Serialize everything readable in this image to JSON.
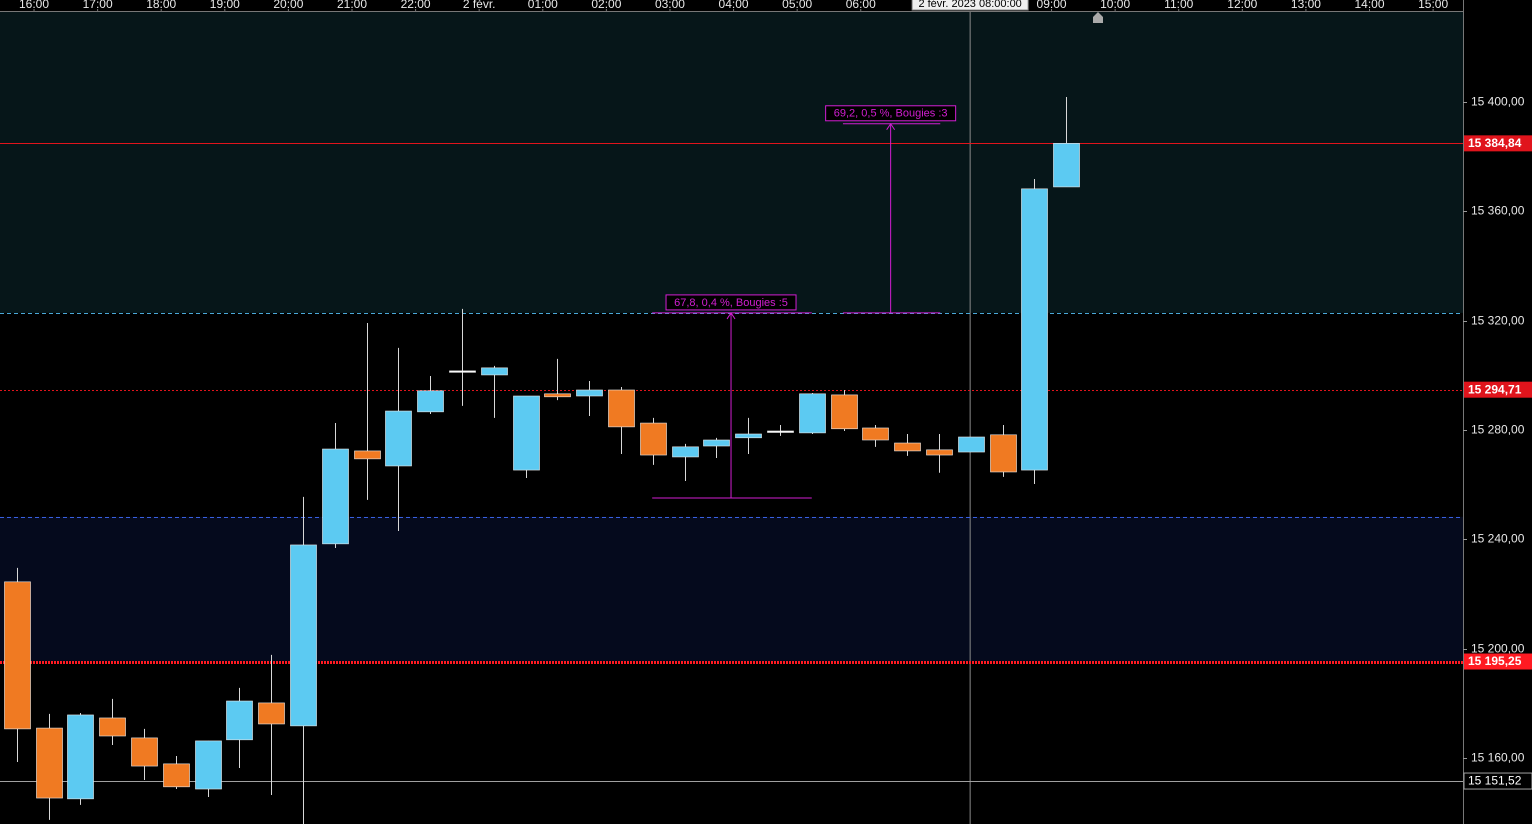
{
  "chart_data": {
    "type": "candlestick",
    "x": [
      -0.27,
      0.23,
      0.73,
      1.23,
      1.73,
      2.23,
      2.73,
      3.23,
      3.73,
      4.23,
      4.73,
      5.23,
      5.73,
      6.23,
      6.73,
      7.23,
      7.73,
      8.23,
      8.73,
      9.23,
      9.73,
      10.23,
      10.73,
      11.23,
      11.73,
      12.23,
      12.73,
      13.23,
      13.73,
      14.23,
      14.73,
      15.23,
      15.73,
      16.23
    ],
    "open": [
      15224.4,
      15170.9,
      15145.0,
      15174.6,
      15167.3,
      15157.8,
      15148.6,
      15166.6,
      15180.1,
      15171.7,
      15238.3,
      15272.3,
      15266.8,
      15286.6,
      15301.6,
      15300.1,
      15265.3,
      15293.2,
      15292.4,
      15294.6,
      15282.5,
      15270.1,
      15274.1,
      15277.1,
      15279.6,
      15278.9,
      15292.8,
      15280.7,
      15275.2,
      15272.7,
      15271.9,
      15278.2,
      15265.3,
      15368.9
    ],
    "high": [
      15229.5,
      15176.1,
      15176.4,
      15181.6,
      15170.6,
      15160.7,
      15166.2,
      15185.6,
      15197.7,
      15255.5,
      15282.5,
      15319.1,
      15310.0,
      15299.7,
      15324.3,
      15303.4,
      15292.4,
      15306.0,
      15297.9,
      15295.7,
      15284.4,
      15274.9,
      15277.1,
      15284.4,
      15281.8,
      15293.5,
      15294.6,
      15281.8,
      15278.5,
      15278.5,
      15277.4,
      15281.8,
      15371.8,
      15401.8
    ],
    "low": [
      15158.5,
      15137.3,
      15142.8,
      15164.7,
      15151.9,
      15148.6,
      15145.7,
      15156.3,
      15146.4,
      15135.0,
      15236.8,
      15254.4,
      15243.0,
      15285.8,
      15288.8,
      15284.4,
      15262.4,
      15290.9,
      15285.1,
      15271.2,
      15267.2,
      15261.3,
      15269.7,
      15271.2,
      15277.8,
      15278.5,
      15279.6,
      15273.8,
      15270.5,
      15264.3,
      15271.9,
      15262.8,
      15260.2,
      15368.9
    ],
    "close": [
      15170.6,
      15145.3,
      15175.7,
      15168.0,
      15157.0,
      15149.4,
      15166.2,
      15180.8,
      15172.4,
      15237.9,
      15273.0,
      15269.4,
      15286.9,
      15294.3,
      15301.6,
      15302.7,
      15292.4,
      15292.1,
      15294.6,
      15281.1,
      15270.8,
      15273.8,
      15276.3,
      15278.5,
      15279.6,
      15293.2,
      15280.4,
      15276.3,
      15272.3,
      15270.8,
      15277.4,
      15264.6,
      15368.2,
      15384.84
    ],
    "up_color": "#5ccaf2",
    "down_color": "#f07a22",
    "doji_color": "#ffffff",
    "xlim": [
      -0.535,
      22.47
    ],
    "ylim": [
      15135.8,
      15432.9
    ],
    "xticks": [
      {
        "value": 0,
        "label": "16:00"
      },
      {
        "value": 1,
        "label": "17:00"
      },
      {
        "value": 2,
        "label": "18:00"
      },
      {
        "value": 3,
        "label": "19:00"
      },
      {
        "value": 4,
        "label": "20:00"
      },
      {
        "value": 5,
        "label": "21:00"
      },
      {
        "value": 6,
        "label": "22:00"
      },
      {
        "value": 7,
        "label": "2 févr."
      },
      {
        "value": 8,
        "label": "01:00"
      },
      {
        "value": 9,
        "label": "02:00"
      },
      {
        "value": 10,
        "label": "03:00"
      },
      {
        "value": 11,
        "label": "04:00"
      },
      {
        "value": 12,
        "label": "05:00"
      },
      {
        "value": 13,
        "label": "06:00"
      },
      {
        "value": 16,
        "label": "09:00"
      },
      {
        "value": 17,
        "label": "10:00"
      },
      {
        "value": 18,
        "label": "11:00"
      },
      {
        "value": 19,
        "label": "12:00"
      },
      {
        "value": 20,
        "label": "13:00"
      },
      {
        "value": 21,
        "label": "14:00"
      },
      {
        "value": 22,
        "label": "15:00"
      }
    ],
    "yticks": [
      {
        "value": 15160,
        "label": "15 160,00"
      },
      {
        "value": 15200,
        "label": "15 200,00"
      },
      {
        "value": 15240,
        "label": "15 240,00"
      },
      {
        "value": 15280,
        "label": "15 280,00"
      },
      {
        "value": 15320,
        "label": "15 320,00"
      },
      {
        "value": 15360,
        "label": "15 360,00"
      },
      {
        "value": 15400,
        "label": "15 400,00"
      }
    ],
    "bands": [
      {
        "range": [
          15322.8,
          15432.9
        ],
        "color": "#061619"
      },
      {
        "range": [
          15195.25,
          15248.2
        ],
        "color": "#050a1d"
      }
    ],
    "levels": [
      {
        "value": 15322.8,
        "color": "#4aa8d8",
        "style": "dashed"
      },
      {
        "value": 15248.2,
        "color": "#3860e0",
        "style": "dashed"
      },
      {
        "value": 15384.84,
        "label": "15 384,84",
        "color": "#e0141c",
        "style": "solid"
      },
      {
        "value": 15294.71,
        "label": "15 294,71",
        "color": "#e0141c",
        "style": "dotted"
      },
      {
        "value": 15195.25,
        "label": "15 195,25",
        "color": "#ff1a22",
        "style": "thick-dotted"
      },
      {
        "value": 15151.52,
        "label": "15 151,52",
        "color": "#a0a0a0",
        "style": "solid"
      }
    ],
    "measures": [
      {
        "label": "67,8, 0,4 %, Bougies :5",
        "from": 15255.1,
        "to": 15322.8,
        "x": 10.96,
        "x_start": 9.72,
        "x_end": 12.23,
        "color": "#d21ed2"
      },
      {
        "label": "69,2, 0,5 %, Bougies :3",
        "from": 15322.8,
        "to": 15392.0,
        "x": 13.47,
        "x_start": 12.72,
        "x_end": 14.25,
        "color": "#d21ed2"
      }
    ],
    "crosshair": {
      "x": 14.72,
      "label": "2 févr. 2023 08:00:00"
    }
  }
}
